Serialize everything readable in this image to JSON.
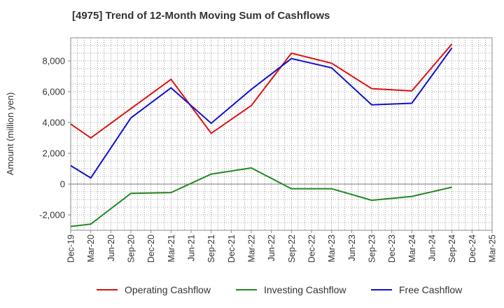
{
  "chart_data": {
    "type": "line",
    "title": "[4975]  Trend of 12-Month Moving Sum of Cashflows",
    "xlabel": "",
    "ylabel": "Amount (million yen)",
    "categories": [
      "Dec-19",
      "Mar-20",
      "Jun-20",
      "Sep-20",
      "Dec-20",
      "Mar-21",
      "Jun-21",
      "Sep-21",
      "Dec-21",
      "Mar-22",
      "Jun-22",
      "Sep-22",
      "Dec-22",
      "Mar-23",
      "Jun-23",
      "Sep-23",
      "Dec-23",
      "Mar-24",
      "Jun-24",
      "Sep-24",
      "Dec-24",
      "Mar-25"
    ],
    "ylim": [
      -3000,
      9500
    ],
    "yticks": [
      -2000,
      0,
      2000,
      4000,
      6000,
      8000
    ],
    "ytick_labels": [
      "-2,000",
      "0",
      "2,000",
      "4,000",
      "6,000",
      "8,000"
    ],
    "grid": true,
    "legend_position": "bottom",
    "series": [
      {
        "name": "Operating Cashflow",
        "color": "#dd1111",
        "x": [
          "Dec-19",
          "Mar-20",
          "Sep-20",
          "Mar-21",
          "Sep-21",
          "Mar-22",
          "Sep-22",
          "Mar-23",
          "Sep-23",
          "Mar-24",
          "Sep-24"
        ],
        "values": [
          3900,
          3000,
          4900,
          6800,
          3300,
          5100,
          8500,
          7850,
          6200,
          6050,
          9100
        ]
      },
      {
        "name": "Investing Cashflow",
        "color": "#228822",
        "x": [
          "Dec-19",
          "Mar-20",
          "Sep-20",
          "Mar-21",
          "Sep-21",
          "Mar-22",
          "Sep-22",
          "Mar-23",
          "Sep-23",
          "Mar-24",
          "Sep-24"
        ],
        "values": [
          -2750,
          -2600,
          -600,
          -550,
          650,
          1050,
          -300,
          -300,
          -1050,
          -800,
          -200
        ]
      },
      {
        "name": "Free Cashflow",
        "color": "#1111cc",
        "x": [
          "Dec-19",
          "Mar-20",
          "Sep-20",
          "Mar-21",
          "Sep-21",
          "Mar-22",
          "Sep-22",
          "Mar-23",
          "Sep-23",
          "Mar-24",
          "Sep-24"
        ],
        "values": [
          1200,
          400,
          4300,
          6250,
          3950,
          6150,
          8150,
          7550,
          5150,
          5250,
          8850
        ]
      }
    ]
  }
}
